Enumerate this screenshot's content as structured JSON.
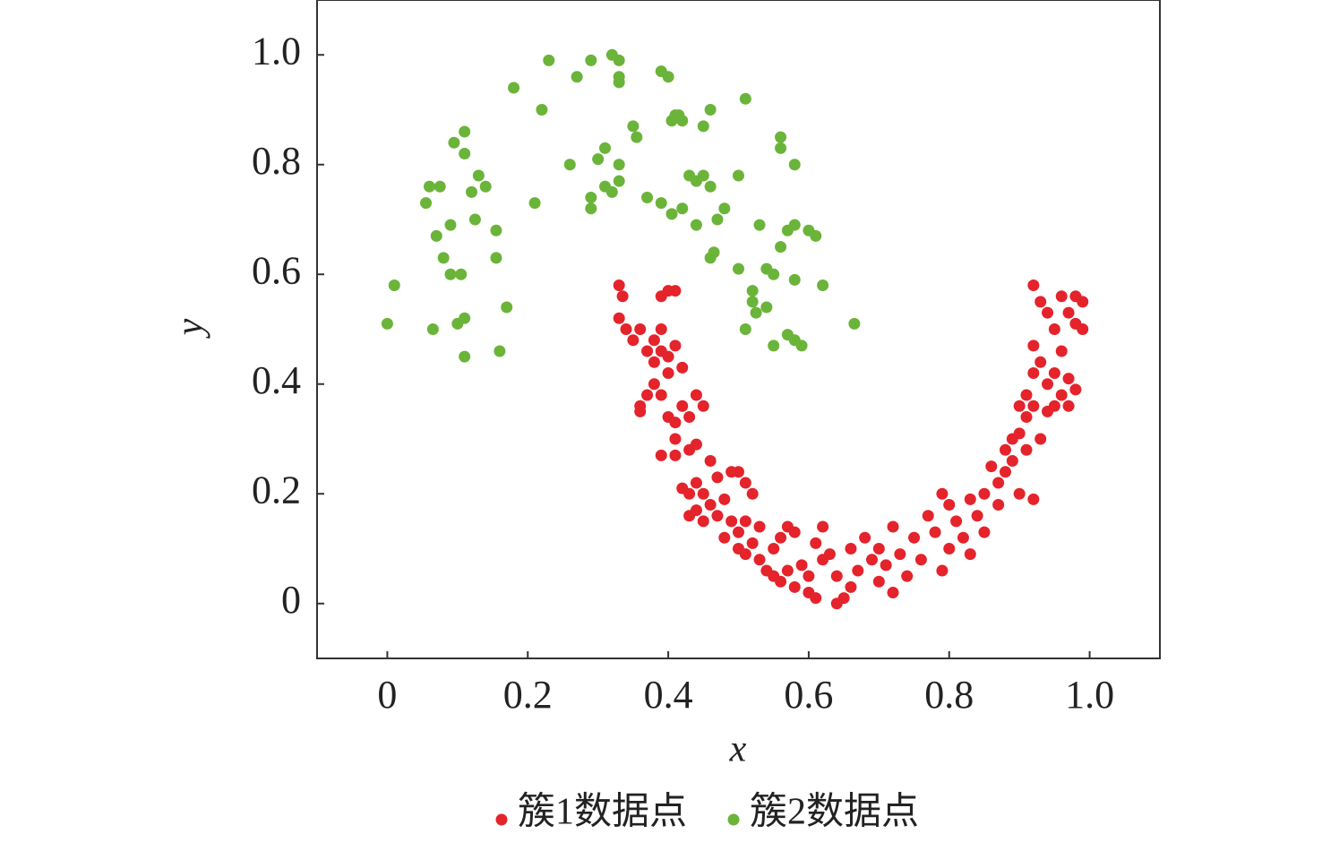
{
  "chart_data": {
    "type": "scatter",
    "x_label": "x",
    "y_label": "y",
    "xlim": [
      -0.1,
      1.1
    ],
    "ylim": [
      -0.1,
      1.1
    ],
    "xticks": [
      0,
      0.2,
      0.4,
      0.6,
      0.8,
      {
        "value": 1,
        "label": "1.0"
      }
    ],
    "yticks": [
      0,
      0.2,
      0.4,
      0.6,
      0.8,
      {
        "value": 1,
        "label": "1.0"
      }
    ],
    "legend": "bottom",
    "series": [
      {
        "name": "簇1数据点",
        "color": "#e4232b",
        "x": [
          0.33,
          0.335,
          0.33,
          0.34,
          0.35,
          0.36,
          0.37,
          0.38,
          0.38,
          0.39,
          0.39,
          0.4,
          0.41,
          0.39,
          0.4,
          0.41,
          0.42,
          0.4,
          0.38,
          0.37,
          0.39,
          0.36,
          0.36,
          0.4,
          0.41,
          0.42,
          0.43,
          0.44,
          0.45,
          0.41,
          0.43,
          0.39,
          0.41,
          0.44,
          0.46,
          0.47,
          0.49,
          0.5,
          0.51,
          0.52,
          0.42,
          0.43,
          0.44,
          0.45,
          0.46,
          0.48,
          0.43,
          0.44,
          0.45,
          0.47,
          0.49,
          0.5,
          0.51,
          0.53,
          0.48,
          0.5,
          0.51,
          0.52,
          0.53,
          0.54,
          0.55,
          0.56,
          0.57,
          0.58,
          0.55,
          0.56,
          0.57,
          0.58,
          0.59,
          0.6,
          0.61,
          0.6,
          0.62,
          0.61,
          0.62,
          0.63,
          0.64,
          0.64,
          0.65,
          0.66,
          0.66,
          0.67,
          0.68,
          0.69,
          0.7,
          0.7,
          0.71,
          0.72,
          0.72,
          0.73,
          0.74,
          0.75,
          0.76,
          0.77,
          0.78,
          0.79,
          0.79,
          0.8,
          0.8,
          0.81,
          0.82,
          0.83,
          0.83,
          0.84,
          0.85,
          0.85,
          0.86,
          0.87,
          0.87,
          0.88,
          0.88,
          0.89,
          0.89,
          0.9,
          0.9,
          0.9,
          0.91,
          0.91,
          0.91,
          0.92,
          0.92,
          0.92,
          0.93,
          0.93,
          0.94,
          0.94,
          0.92,
          0.93,
          0.92,
          0.94,
          0.95,
          0.95,
          0.96,
          0.96,
          0.96,
          0.97,
          0.97,
          0.98,
          0.98,
          0.99,
          0.99,
          0.97,
          0.98,
          0.95
        ],
        "values": [
          0.58,
          0.56,
          0.52,
          0.5,
          0.48,
          0.5,
          0.46,
          0.44,
          0.48,
          0.5,
          0.56,
          0.57,
          0.57,
          0.46,
          0.45,
          0.47,
          0.43,
          0.42,
          0.4,
          0.38,
          0.38,
          0.36,
          0.35,
          0.34,
          0.33,
          0.36,
          0.34,
          0.38,
          0.36,
          0.3,
          0.28,
          0.27,
          0.27,
          0.29,
          0.26,
          0.23,
          0.24,
          0.24,
          0.22,
          0.2,
          0.21,
          0.2,
          0.22,
          0.2,
          0.18,
          0.19,
          0.16,
          0.17,
          0.15,
          0.16,
          0.15,
          0.13,
          0.15,
          0.14,
          0.12,
          0.1,
          0.09,
          0.11,
          0.08,
          0.06,
          0.1,
          0.12,
          0.14,
          0.13,
          0.05,
          0.04,
          0.06,
          0.03,
          0.07,
          0.02,
          0.01,
          0.05,
          0.08,
          0.11,
          0.14,
          0.09,
          0.05,
          0,
          0.01,
          0.03,
          0.1,
          0.06,
          0.12,
          0.08,
          0.04,
          0.1,
          0.07,
          0.02,
          0.14,
          0.09,
          0.05,
          0.12,
          0.08,
          0.16,
          0.13,
          0.2,
          0.06,
          0.1,
          0.18,
          0.15,
          0.12,
          0.09,
          0.19,
          0.16,
          0.2,
          0.13,
          0.25,
          0.22,
          0.18,
          0.28,
          0.24,
          0.3,
          0.26,
          0.31,
          0.2,
          0.36,
          0.38,
          0.34,
          0.28,
          0.42,
          0.36,
          0.19,
          0.3,
          0.44,
          0.4,
          0.35,
          0.47,
          0.55,
          0.58,
          0.53,
          0.5,
          0.42,
          0.56,
          0.46,
          0.38,
          0.53,
          0.41,
          0.51,
          0.56,
          0.55,
          0.5,
          0.36,
          0.39,
          0.36
        ]
      },
      {
        "name": "簇2数据点",
        "color": "#6ab43a",
        "x": [
          0,
          0.01,
          0.055,
          0.06,
          0.075,
          0.07,
          0.065,
          0.08,
          0.09,
          0.09,
          0.095,
          0.11,
          0.11,
          0.105,
          0.1,
          0.11,
          0.11,
          0.12,
          0.13,
          0.14,
          0.125,
          0.155,
          0.155,
          0.17,
          0.16,
          0.18,
          0.21,
          0.22,
          0.23,
          0.26,
          0.27,
          0.29,
          0.29,
          0.29,
          0.3,
          0.31,
          0.31,
          0.32,
          0.33,
          0.33,
          0.32,
          0.33,
          0.33,
          0.33,
          0.35,
          0.355,
          0.37,
          0.39,
          0.39,
          0.4,
          0.405,
          0.41,
          0.415,
          0.42,
          0.405,
          0.42,
          0.43,
          0.44,
          0.45,
          0.46,
          0.44,
          0.45,
          0.46,
          0.46,
          0.465,
          0.47,
          0.48,
          0.5,
          0.5,
          0.51,
          0.51,
          0.52,
          0.52,
          0.525,
          0.53,
          0.54,
          0.54,
          0.55,
          0.55,
          0.56,
          0.56,
          0.56,
          0.57,
          0.57,
          0.58,
          0.58,
          0.58,
          0.59,
          0.58,
          0.6,
          0.61,
          0.62,
          0.665
        ],
        "values": [
          0.51,
          0.58,
          0.73,
          0.76,
          0.76,
          0.67,
          0.5,
          0.63,
          0.6,
          0.69,
          0.84,
          0.86,
          0.82,
          0.6,
          0.51,
          0.52,
          0.45,
          0.75,
          0.78,
          0.76,
          0.7,
          0.68,
          0.63,
          0.54,
          0.46,
          0.94,
          0.73,
          0.9,
          0.99,
          0.8,
          0.96,
          0.99,
          0.74,
          0.72,
          0.81,
          0.76,
          0.83,
          0.75,
          0.77,
          0.8,
          1,
          0.99,
          0.96,
          0.95,
          0.87,
          0.85,
          0.74,
          0.73,
          0.97,
          0.96,
          0.88,
          0.89,
          0.89,
          0.88,
          0.71,
          0.72,
          0.78,
          0.77,
          0.78,
          0.76,
          0.69,
          0.87,
          0.9,
          0.63,
          0.64,
          0.7,
          0.72,
          0.61,
          0.78,
          0.92,
          0.5,
          0.55,
          0.57,
          0.53,
          0.69,
          0.61,
          0.54,
          0.47,
          0.6,
          0.83,
          0.85,
          0.65,
          0.68,
          0.49,
          0.69,
          0.48,
          0.59,
          0.47,
          0.8,
          0.68,
          0.67,
          0.58,
          0.51
        ]
      }
    ]
  }
}
